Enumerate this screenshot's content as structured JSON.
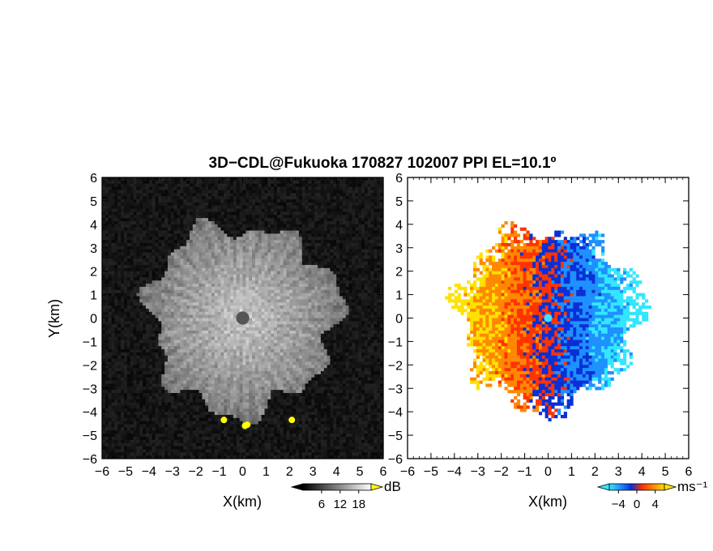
{
  "title": "3D−CDL@Fukuoka 170827 102007 PPI EL=10.1º",
  "chart_data": [
    {
      "type": "heatmap",
      "panel": "intensity",
      "xlabel": "X(km)",
      "ylabel": "Y(km)",
      "xlim": [
        -6,
        6
      ],
      "ylim": [
        -6,
        6
      ],
      "x_ticks": [
        "−6",
        "−5",
        "−4",
        "−3",
        "−2",
        "−1",
        "0",
        "1",
        "2",
        "3",
        "4",
        "5",
        "6"
      ],
      "y_ticks": [
        "−6",
        "−5",
        "−4",
        "−3",
        "−2",
        "−1",
        "0",
        "1",
        "2",
        "3",
        "4",
        "5",
        "6"
      ],
      "echo_radius_km": 4.0,
      "center_gap_radius_km": 0.2,
      "hot_targets_km": [
        [
          0.1,
          -4.6
        ],
        [
          0.2,
          -4.55
        ],
        [
          2.1,
          -4.35
        ],
        [
          -0.8,
          -4.35
        ]
      ],
      "colorbar": {
        "unit": "dB",
        "ticks": [
          "6",
          "12",
          "18"
        ],
        "min": 0,
        "max": 22,
        "colors": [
          "#000000",
          "#ffffff"
        ],
        "high_color": "#ffff00"
      }
    },
    {
      "type": "heatmap",
      "panel": "doppler_velocity",
      "xlabel": "X(km)",
      "xlim": [
        -6,
        6
      ],
      "ylim": [
        -6,
        6
      ],
      "x_ticks": [
        "−6",
        "−5",
        "−4",
        "−3",
        "−2",
        "−1",
        "0",
        "1",
        "2",
        "3",
        "4",
        "5",
        "6"
      ],
      "y_ticks": [
        "−6",
        "−5",
        "−4",
        "−3",
        "−2",
        "−1",
        "0",
        "1",
        "2",
        "3",
        "4",
        "5",
        "6"
      ],
      "echo_radius_km": 4.0,
      "approaching_sector": "east (x > 0)",
      "receding_sector": "west (x < 0)",
      "colorbar": {
        "unit": "ms⁻¹",
        "ticks": [
          "−4",
          "0",
          "4"
        ],
        "min": -6,
        "max": 6,
        "colors": [
          "#33e6ff",
          "#1e90ff",
          "#0a2fd6",
          "#ff3300",
          "#ff8800",
          "#ffe100"
        ]
      }
    }
  ]
}
